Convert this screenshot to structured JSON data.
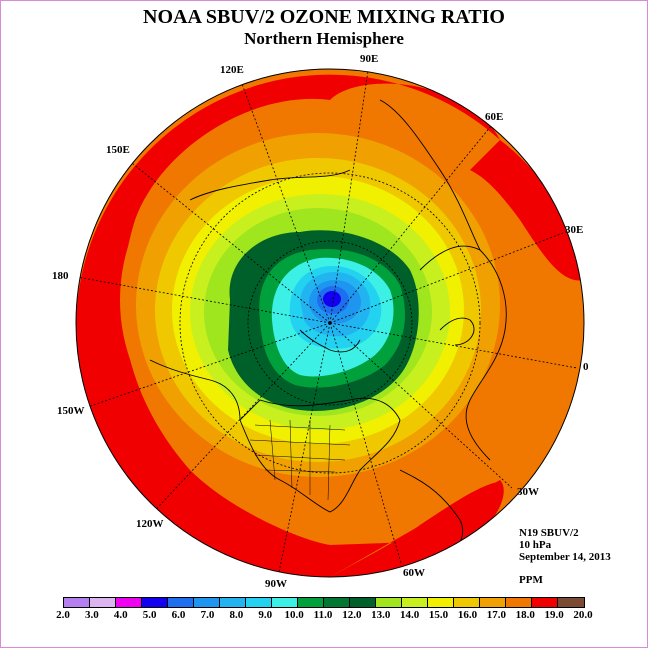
{
  "header": {
    "title": "NOAA SBUV/2 OZONE MIXING RATIO",
    "subtitle": "Northern Hemisphere"
  },
  "info": {
    "satellite": "N19 SBUV/2",
    "level": "10 hPa",
    "date": "September 14, 2013",
    "units": "PPM"
  },
  "longitude_labels": [
    "90E",
    "60E",
    "30E",
    "0",
    "30W",
    "60W",
    "90W",
    "120W",
    "150W",
    "180",
    "150E",
    "120E"
  ],
  "colorbar": {
    "ticks": [
      "2.0",
      "3.0",
      "4.0",
      "5.0",
      "6.0",
      "7.0",
      "8.0",
      "9.0",
      "10.0",
      "11.0",
      "12.0",
      "13.0",
      "14.0",
      "15.0",
      "16.0",
      "17.0",
      "18.0",
      "19.0",
      "20.0"
    ],
    "colors": [
      "#b57ff0",
      "#dcb4f0",
      "#f000f0",
      "#1400f0",
      "#1e6ef0",
      "#1e96f0",
      "#22b4f0",
      "#22d2f0",
      "#3cf0e6",
      "#00a03c",
      "#007832",
      "#00602a",
      "#a0e61e",
      "#c8f01e",
      "#f0f000",
      "#f0c800",
      "#f0a000",
      "#f07800",
      "#f00000",
      "#7b4a32"
    ]
  },
  "map_colors": {
    "outer_red": "#f00000",
    "coastline": "#000000"
  }
}
